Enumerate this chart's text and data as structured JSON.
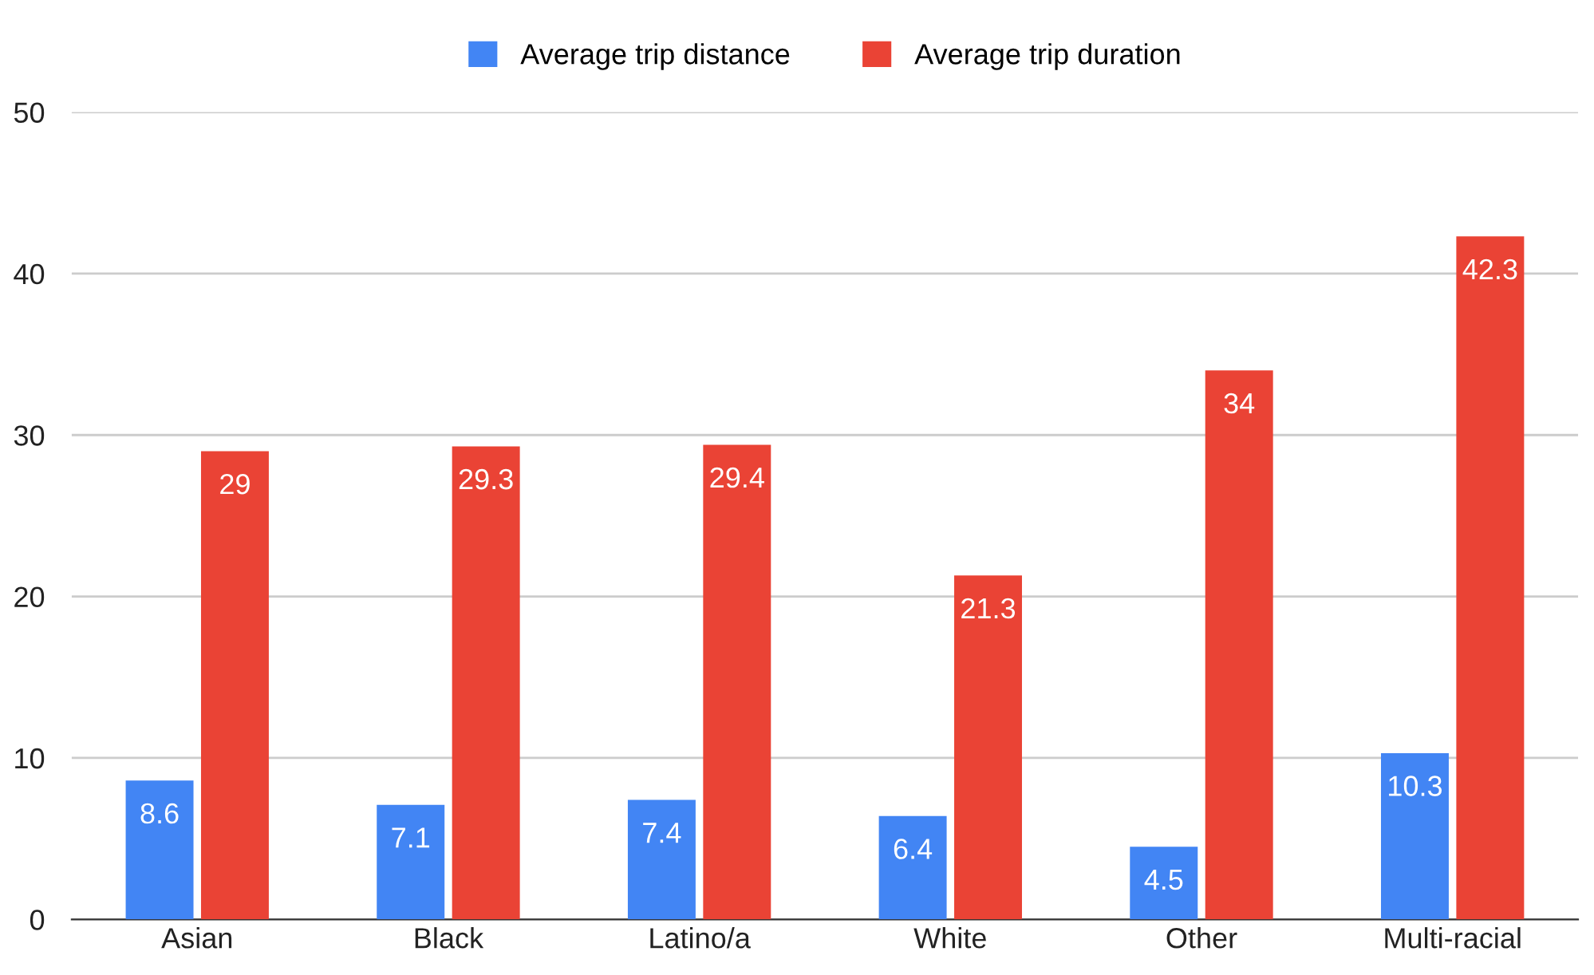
{
  "chart_data": {
    "type": "bar",
    "categories": [
      "Asian",
      "Black",
      "Latino/a",
      "White",
      "Other",
      "Multi-racial"
    ],
    "series": [
      {
        "name": "Average trip distance",
        "color": "#4285f4",
        "values": [
          8.6,
          7.1,
          7.4,
          6.4,
          4.5,
          10.3
        ]
      },
      {
        "name": "Average trip duration",
        "color": "#ea4335",
        "values": [
          29,
          29.3,
          29.4,
          21.3,
          34,
          42.3
        ]
      }
    ],
    "ylim": [
      0,
      50
    ],
    "yticks": [
      0,
      10,
      20,
      30,
      40,
      50
    ],
    "grid": "y",
    "legend": "top",
    "data_labels": true
  }
}
